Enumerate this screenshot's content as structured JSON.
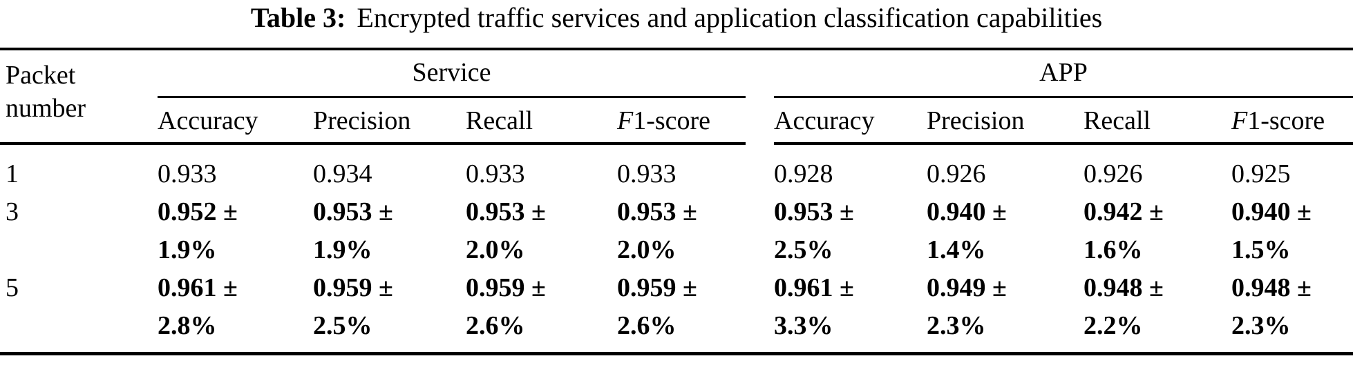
{
  "colors": {
    "text": "#000000",
    "background": "#ffffff"
  },
  "caption": {
    "label": "Table 3:",
    "text": "Encrypted traffic services and application classification capabilities"
  },
  "table": {
    "row_header_label": "Packet number",
    "groups": [
      {
        "label": "Service",
        "columns": [
          {
            "italic": "",
            "label": "Accuracy"
          },
          {
            "italic": "",
            "label": "Precision"
          },
          {
            "italic": "",
            "label": "Recall"
          },
          {
            "italic": "F",
            "label": "1-score"
          }
        ]
      },
      {
        "label": "APP",
        "columns": [
          {
            "italic": "",
            "label": "Accuracy"
          },
          {
            "italic": "",
            "label": "Precision"
          },
          {
            "italic": "",
            "label": "Recall"
          },
          {
            "italic": "F",
            "label": "1-score"
          }
        ]
      }
    ],
    "rows": [
      {
        "packet_number": "1",
        "bold": false,
        "service": [
          {
            "v": "0.933",
            "v2": ""
          },
          {
            "v": "0.934",
            "v2": ""
          },
          {
            "v": "0.933",
            "v2": ""
          },
          {
            "v": "0.933",
            "v2": ""
          }
        ],
        "app": [
          {
            "v": "0.928",
            "v2": ""
          },
          {
            "v": "0.926",
            "v2": ""
          },
          {
            "v": "0.926",
            "v2": ""
          },
          {
            "v": "0.925",
            "v2": ""
          }
        ]
      },
      {
        "packet_number": "3",
        "bold": true,
        "service": [
          {
            "v": "0.952 ±",
            "v2": "1.9%"
          },
          {
            "v": "0.953 ±",
            "v2": "1.9%"
          },
          {
            "v": "0.953 ±",
            "v2": "2.0%"
          },
          {
            "v": "0.953 ±",
            "v2": "2.0%"
          }
        ],
        "app": [
          {
            "v": "0.953 ±",
            "v2": "2.5%"
          },
          {
            "v": "0.940 ±",
            "v2": "1.4%"
          },
          {
            "v": "0.942 ±",
            "v2": "1.6%"
          },
          {
            "v": "0.940 ±",
            "v2": "1.5%"
          }
        ]
      },
      {
        "packet_number": "5",
        "bold": true,
        "service": [
          {
            "v": "0.961 ±",
            "v2": "2.8%"
          },
          {
            "v": "0.959 ±",
            "v2": "2.5%"
          },
          {
            "v": "0.959 ±",
            "v2": "2.6%"
          },
          {
            "v": "0.959 ±",
            "v2": "2.6%"
          }
        ],
        "app": [
          {
            "v": "0.961 ±",
            "v2": "3.3%"
          },
          {
            "v": "0.949 ±",
            "v2": "2.3%"
          },
          {
            "v": "0.948 ±",
            "v2": "2.2%"
          },
          {
            "v": "0.948 ±",
            "v2": "2.3%"
          }
        ]
      }
    ]
  }
}
